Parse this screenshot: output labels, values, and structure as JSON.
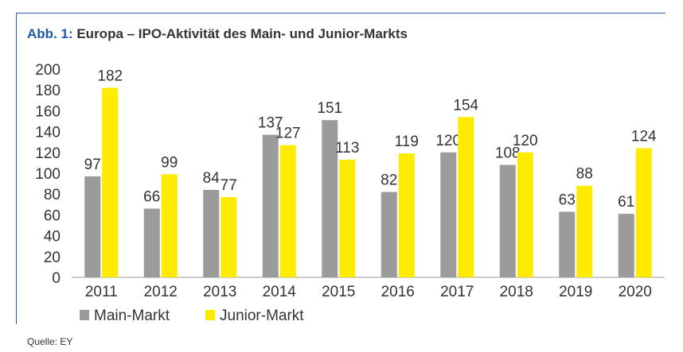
{
  "figure_label": "Abb. 1:",
  "title_text": "Europa – IPO-Aktivität des Main- und Junior-Markts",
  "source": "Quelle: EY",
  "colors": {
    "main": "#9b9b9b",
    "junior": "#ffeb00",
    "accent": "#1f5aa6",
    "text": "#333333"
  },
  "chart_data": {
    "type": "bar",
    "title": "Europa – IPO-Aktivität des Main- und Junior-Markts",
    "xlabel": "",
    "ylabel": "",
    "categories": [
      "2011",
      "2012",
      "2013",
      "2014",
      "2015",
      "2016",
      "2017",
      "2018",
      "2019",
      "2020"
    ],
    "series": [
      {
        "name": "Main-Markt",
        "color": "#9b9b9b",
        "values": [
          97,
          66,
          84,
          137,
          151,
          82,
          120,
          108,
          63,
          61
        ]
      },
      {
        "name": "Junior-Markt",
        "color": "#ffeb00",
        "values": [
          182,
          99,
          77,
          127,
          113,
          119,
          154,
          120,
          88,
          124
        ]
      }
    ],
    "ylim": [
      0,
      200
    ],
    "yticks": [
      0,
      20,
      40,
      60,
      80,
      100,
      120,
      140,
      160,
      180,
      200
    ],
    "grid": false,
    "data_labels": true,
    "legend": "bottom-left"
  }
}
